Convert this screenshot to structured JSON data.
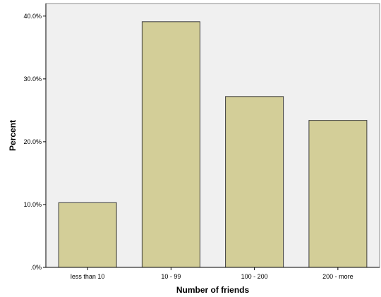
{
  "chart_data": {
    "type": "bar",
    "title": "",
    "xlabel": "Number of friends",
    "ylabel": "Percent",
    "categories": [
      "less than 10",
      "10 - 99",
      "100 - 200",
      "200 - more"
    ],
    "values": [
      10.3,
      39.1,
      27.2,
      23.4
    ],
    "ylim": [
      0,
      42
    ],
    "yticks": [
      0,
      10,
      20,
      30,
      40
    ],
    "ytick_labels": [
      ".0%",
      "10.0%",
      "20.0%",
      "30.0%",
      "40.0%"
    ],
    "grid": false,
    "legend": "none",
    "colors": {
      "plot_background": "#f0f0f0",
      "bar_fill": "#d3ce98",
      "bar_stroke": "#3c3c3c",
      "axis": "#000000"
    }
  }
}
